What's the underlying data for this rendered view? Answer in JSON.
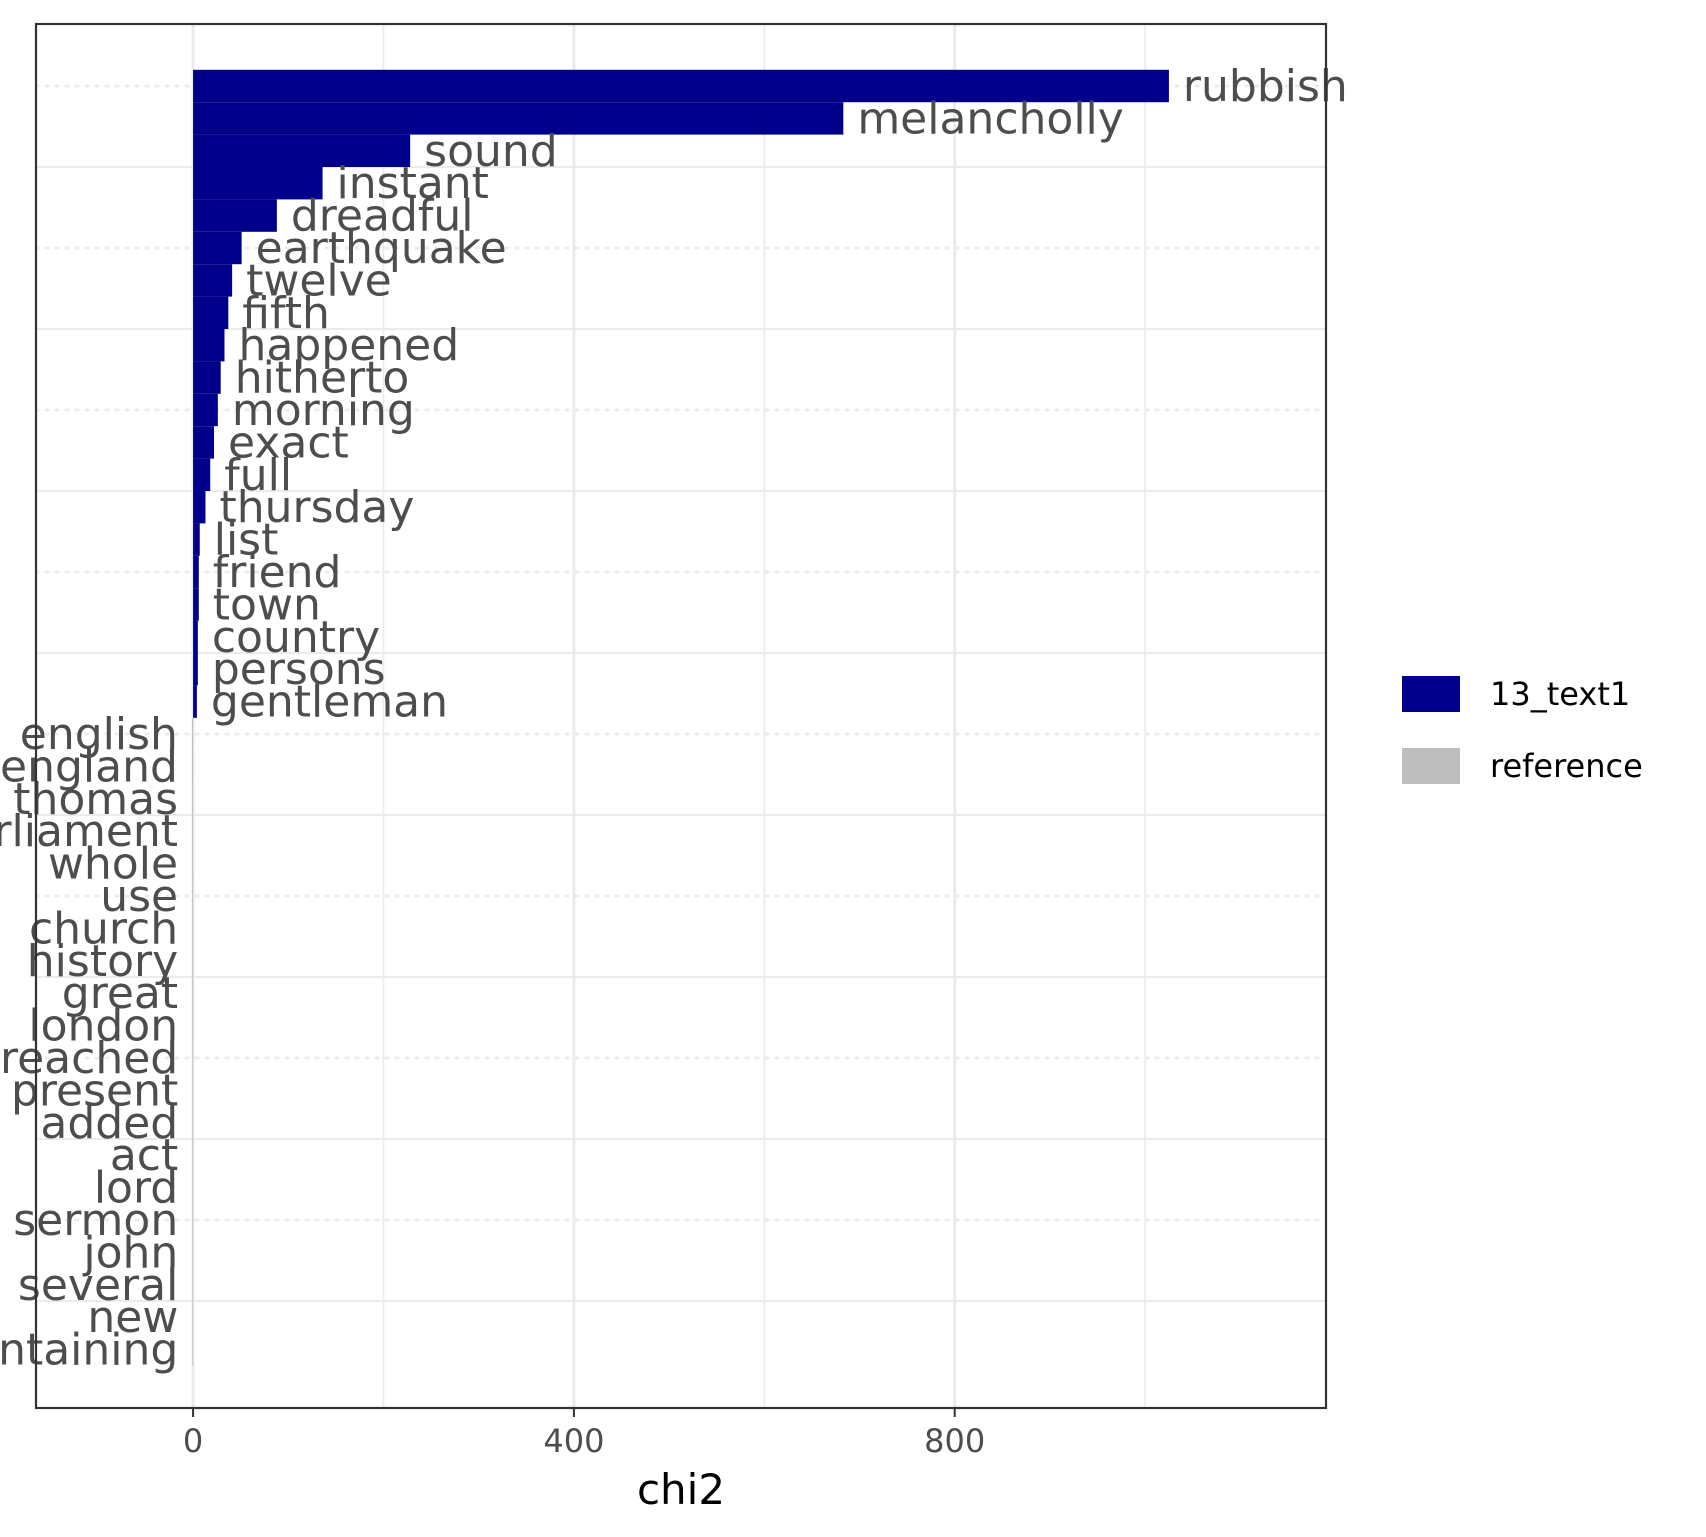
{
  "chart_data": {
    "type": "bar",
    "orientation": "horizontal",
    "xlabel": "chi2",
    "ylabel": "",
    "xlim": [
      -165,
      1190
    ],
    "xticks": [
      0,
      400,
      800
    ],
    "grid": true,
    "legend_position": "right",
    "series": [
      {
        "name": "13_text1",
        "color": "#00008b",
        "categories": [
          "rubbish",
          "melancholly",
          "sound",
          "instant",
          "dreadful",
          "earthquake",
          "twelve",
          "fifth",
          "happened",
          "hitherto",
          "morning",
          "exact",
          "full",
          "thursday",
          "list",
          "friend",
          "town",
          "country",
          "persons",
          "gentleman"
        ],
        "values": [
          1025,
          683,
          228,
          136,
          88,
          51,
          41,
          37,
          33,
          29,
          26,
          22,
          18,
          13,
          7,
          6,
          6,
          5,
          5,
          4
        ]
      },
      {
        "name": "reference",
        "color": "#bebebe",
        "categories": [
          "english",
          "england",
          "thomas",
          "parliament",
          "whole",
          "use",
          "church",
          "history",
          "great",
          "london",
          "preached",
          "present",
          "added",
          "act",
          "lord",
          "sermon",
          "john",
          "several",
          "new",
          "containing"
        ],
        "values": [
          -1.2,
          -1.2,
          -1.1,
          -1.1,
          -1.1,
          -1.0,
          -1.0,
          -1.0,
          -1.0,
          -1.0,
          -0.9,
          -0.9,
          -0.9,
          -0.9,
          -0.9,
          -0.9,
          -0.8,
          -0.8,
          -0.8,
          -0.8
        ]
      }
    ]
  }
}
